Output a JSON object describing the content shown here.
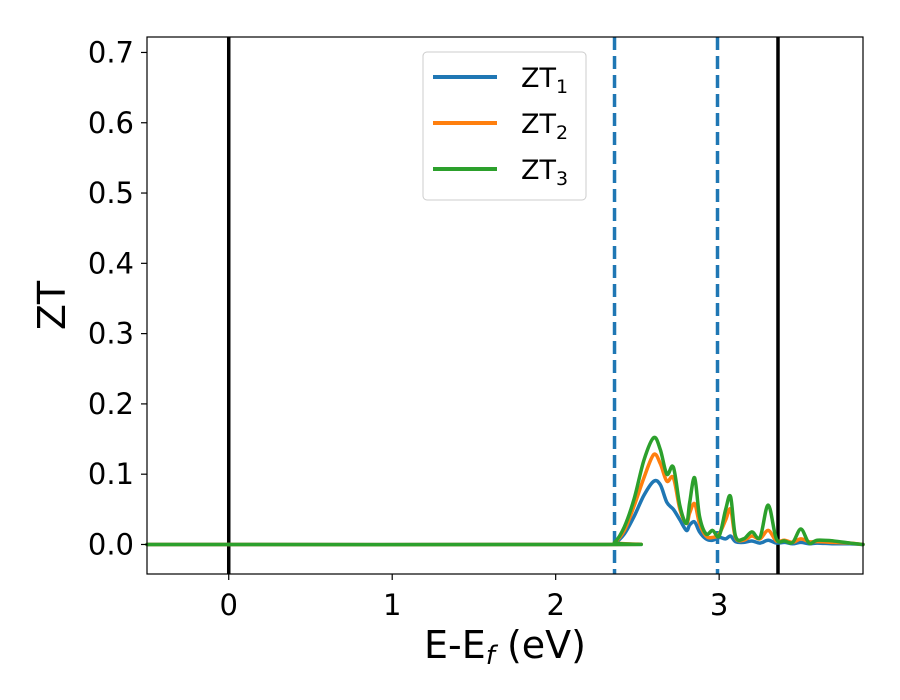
{
  "chart_data": {
    "type": "line",
    "xlabel": {
      "main": "E-E",
      "sub": "f",
      "unit": " (eV)"
    },
    "ylabel": "ZT",
    "xlim": [
      -0.5,
      3.88
    ],
    "ylim": [
      -0.042,
      0.722
    ],
    "xticks": [
      0,
      1,
      2,
      3
    ],
    "xtick_labels": [
      "0",
      "1",
      "2",
      "3"
    ],
    "yticks": [
      0.0,
      0.1,
      0.2,
      0.3,
      0.4,
      0.5,
      0.6,
      0.7
    ],
    "ytick_labels": [
      "0.0",
      "0.1",
      "0.2",
      "0.3",
      "0.4",
      "0.5",
      "0.6",
      "0.7"
    ],
    "grid": false,
    "legend_position": "top-center",
    "vlines": [
      {
        "x": 0.0,
        "style": "solid",
        "color": "#000000"
      },
      {
        "x": 3.36,
        "style": "solid",
        "color": "#000000"
      },
      {
        "x": 2.36,
        "style": "dashed",
        "color": "#1f77b4"
      },
      {
        "x": 2.99,
        "style": "dashed",
        "color": "#1f77b4"
      }
    ],
    "series": [
      {
        "name": "ZT",
        "sub": "1",
        "color": "#1f77b4",
        "x": [
          -0.5,
          2.3,
          2.36,
          2.42,
          2.48,
          2.54,
          2.6,
          2.64,
          2.68,
          2.72,
          2.76,
          2.8,
          2.82,
          2.85,
          2.88,
          2.92,
          2.96,
          3.0,
          3.04,
          3.07,
          3.1,
          3.15,
          3.2,
          3.25,
          3.3,
          3.35,
          3.4,
          3.45,
          3.5,
          3.55,
          3.6,
          3.7,
          3.8,
          3.88
        ],
        "y": [
          0.0,
          0.0,
          0.002,
          0.015,
          0.04,
          0.07,
          0.09,
          0.085,
          0.06,
          0.05,
          0.035,
          0.02,
          0.028,
          0.032,
          0.018,
          0.008,
          0.006,
          0.01,
          0.008,
          0.012,
          0.004,
          0.003,
          0.005,
          0.002,
          0.006,
          0.002,
          0.003,
          0.001,
          0.003,
          0.001,
          0.002,
          0.001,
          0.001,
          0.0
        ]
      },
      {
        "name": "ZT",
        "sub": "2",
        "color": "#ff7f0e",
        "x": [
          -0.5,
          2.3,
          2.36,
          2.42,
          2.48,
          2.54,
          2.6,
          2.64,
          2.68,
          2.72,
          2.76,
          2.8,
          2.82,
          2.85,
          2.88,
          2.92,
          2.96,
          3.0,
          3.04,
          3.07,
          3.1,
          3.15,
          3.2,
          3.25,
          3.3,
          3.35,
          3.4,
          3.45,
          3.5,
          3.55,
          3.6,
          3.7,
          3.8,
          3.88
        ],
        "y": [
          0.0,
          0.0,
          0.003,
          0.02,
          0.055,
          0.095,
          0.128,
          0.115,
          0.09,
          0.095,
          0.05,
          0.03,
          0.045,
          0.058,
          0.03,
          0.012,
          0.01,
          0.015,
          0.035,
          0.05,
          0.01,
          0.006,
          0.012,
          0.008,
          0.02,
          0.005,
          0.006,
          0.003,
          0.008,
          0.004,
          0.004,
          0.003,
          0.002,
          0.0
        ]
      },
      {
        "name": "ZT",
        "sub": "3",
        "color": "#2ca02c",
        "x": [
          -0.5,
          2.3,
          2.36,
          2.42,
          2.48,
          2.54,
          2.6,
          2.64,
          2.68,
          2.72,
          2.76,
          2.8,
          2.82,
          2.85,
          2.88,
          2.92,
          2.96,
          3.0,
          3.04,
          3.07,
          3.1,
          3.15,
          3.2,
          3.25,
          3.3,
          3.35,
          3.4,
          3.45,
          3.5,
          3.55,
          3.6,
          3.7,
          3.8,
          3.88
        ],
        "y": [
          0.0,
          0.0,
          0.003,
          0.025,
          0.065,
          0.12,
          0.152,
          0.135,
          0.1,
          0.11,
          0.055,
          0.03,
          0.06,
          0.095,
          0.04,
          0.015,
          0.02,
          0.012,
          0.05,
          0.068,
          0.012,
          0.008,
          0.018,
          0.01,
          0.056,
          0.008,
          0.005,
          0.003,
          0.022,
          0.002,
          0.006,
          0.005,
          0.002,
          0.0
        ]
      }
    ]
  }
}
